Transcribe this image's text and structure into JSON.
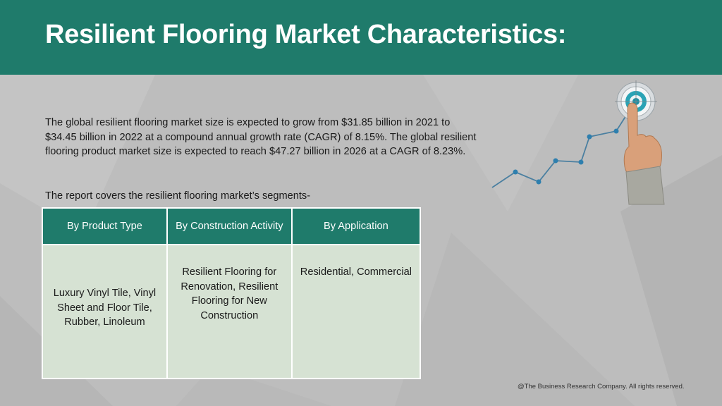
{
  "title": "Resilient Flooring Market Characteristics:",
  "intro": "The global resilient flooring market size is expected to grow from $31.85 billion in 2021 to $34.45 billion in 2022 at a compound annual growth rate (CAGR) of 8.15%. The global resilient flooring product market size is expected to reach $47.27 billion in 2026 at a CAGR of 8.23%.",
  "segments_intro": "The report covers the resilient flooring market’s segments-",
  "table": {
    "headers": [
      "By Product Type",
      "By Construction Activity",
      "By Application"
    ],
    "cells": [
      "Luxury Vinyl Tile, Vinyl Sheet and Floor Tile, Rubber, Linoleum",
      "Resilient Flooring for Renovation, Resilient Flooring for New Construction",
      "Residential, Commercial"
    ]
  },
  "footer": "@The Business Research Company. All rights reserved.",
  "colors": {
    "header": "#1f7b6b",
    "background": "#bdbdbd",
    "table_body": "#d6e2d3",
    "trend_line": "#4a7fa0",
    "target": "#2aa3b5"
  },
  "icons": [
    "trend-line-icon",
    "target-icon",
    "pointing-hand-icon"
  ]
}
